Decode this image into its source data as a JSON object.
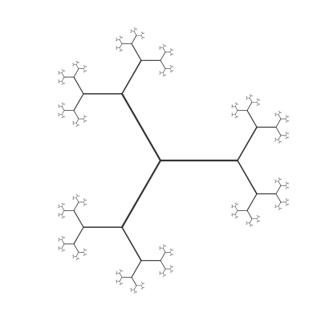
{
  "figure": {
    "kind": "symmetric-binary-fractal-tree",
    "description_visible_text": "",
    "background_color": "#ffffff",
    "stroke_color": "#333333",
    "trunk_count": 3,
    "branch_factor": 2,
    "branch_angle_deg": 60,
    "length_ratio": 0.5,
    "depth": 7
  }
}
